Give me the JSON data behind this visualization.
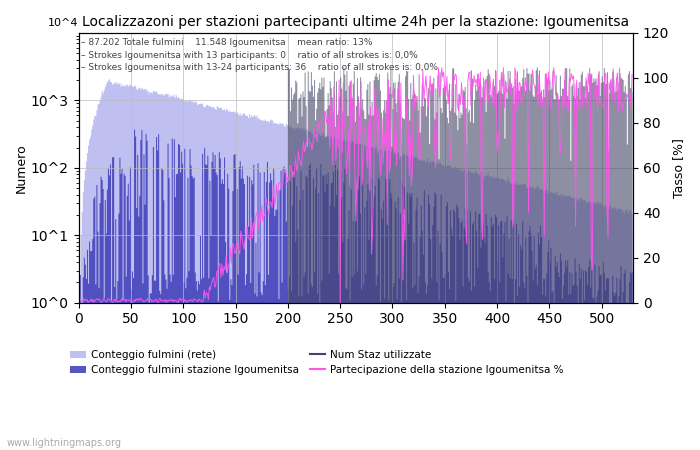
{
  "title": "Localizzazoni per stazioni partecipanti ultime 24h per la stazione: Igoumenitsa",
  "ylabel_left": "Numero",
  "ylabel_right": "Tasso [%]",
  "annotation_lines": [
    "87.202 Totale fulmini    11.548 Igoumenitsa    mean ratio: 13%",
    "Strokes Igoumenitsa with 13 participants: 0    ratio of all strokes is: 0,0%",
    "Strokes Igoumenitsa with 13-24 participants: 36    ratio of all strokes is: 0,0%"
  ],
  "xlim": [
    0,
    530
  ],
  "ylim_right": [
    0,
    120
  ],
  "color_light_blue": "#aaaaee",
  "color_dark_blue": "#4444bb",
  "color_pink": "#ff55ee",
  "color_numstaz": "#444466",
  "legend_labels": [
    "Conteggio fulmini (rete)",
    "Conteggio fulmini stazione Igoumenitsa",
    "Num Staz utilizzate",
    "Partecipazione della stazione Igoumenitsa %"
  ],
  "watermark": "www.lightningmaps.org",
  "n_bins": 530
}
